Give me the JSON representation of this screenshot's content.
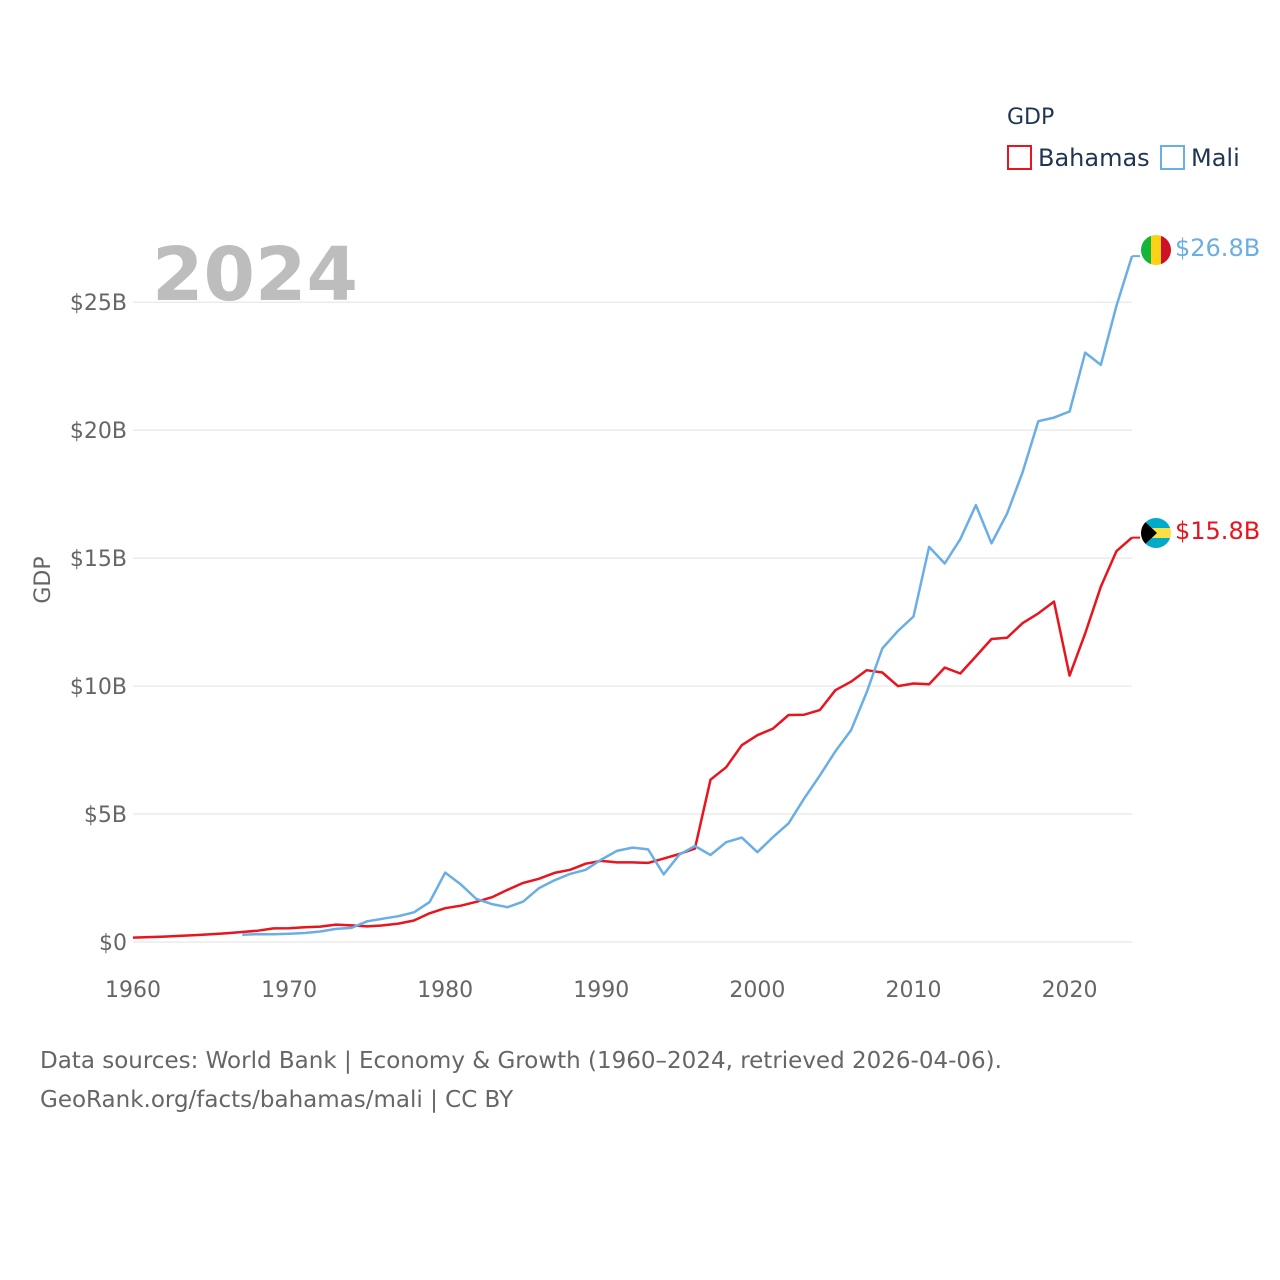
{
  "chart_data": {
    "type": "line",
    "title": "GDP",
    "xlabel": "",
    "ylabel": "GDP",
    "year_label": "2024",
    "xlim": [
      1960,
      2024
    ],
    "ylim": [
      0,
      27000000000
    ],
    "x_ticks": [
      1960,
      1970,
      1980,
      1990,
      2000,
      2010,
      2020
    ],
    "x_tick_labels": [
      "1960",
      "1970",
      "1980",
      "1990",
      "2000",
      "2010",
      "2020"
    ],
    "y_ticks": [
      0,
      5000000000,
      10000000000,
      15000000000,
      20000000000,
      25000000000
    ],
    "y_tick_labels": [
      "$0",
      "$5B",
      "$10B",
      "$15B",
      "$20B",
      "$25B"
    ],
    "grid": true,
    "legend": {
      "title": "GDP",
      "placement": "top-right",
      "entries": [
        "Bahamas",
        "Mali"
      ]
    },
    "series": [
      {
        "name": "Bahamas",
        "color": "#e8141e",
        "end_label": "$15.8B",
        "flag": "bahamas",
        "x": [
          1960,
          1961,
          1962,
          1963,
          1964,
          1965,
          1966,
          1967,
          1968,
          1969,
          1970,
          1971,
          1972,
          1973,
          1974,
          1975,
          1976,
          1977,
          1978,
          1979,
          1980,
          1981,
          1982,
          1983,
          1984,
          1985,
          1986,
          1987,
          1988,
          1989,
          1990,
          1991,
          1992,
          1993,
          1994,
          1995,
          1996,
          1997,
          1998,
          1999,
          2000,
          2001,
          2002,
          2003,
          2004,
          2005,
          2006,
          2007,
          2008,
          2009,
          2010,
          2011,
          2012,
          2013,
          2014,
          2015,
          2016,
          2017,
          2018,
          2019,
          2020,
          2021,
          2022,
          2023,
          2024
        ],
        "values": [
          170000000,
          190000000,
          210000000,
          240000000,
          270000000,
          300000000,
          340000000,
          390000000,
          440000000,
          530000000,
          540000000,
          580000000,
          600000000,
          680000000,
          650000000,
          610000000,
          650000000,
          720000000,
          840000000,
          1120000000,
          1320000000,
          1420000000,
          1570000000,
          1750000000,
          2040000000,
          2310000000,
          2470000000,
          2700000000,
          2820000000,
          3060000000,
          3170000000,
          3110000000,
          3110000000,
          3090000000,
          3260000000,
          3440000000,
          3650000000,
          6340000000,
          6830000000,
          7690000000,
          8080000000,
          8340000000,
          8870000000,
          8880000000,
          9060000000,
          9840000000,
          10170000000,
          10620000000,
          10530000000,
          10000000000,
          10100000000,
          10070000000,
          10720000000,
          10490000000,
          11160000000,
          11840000000,
          11890000000,
          12460000000,
          12840000000,
          13300000000,
          10410000000,
          12060000000,
          13880000000,
          15270000000,
          15800000000
        ]
      },
      {
        "name": "Mali",
        "color": "#6aaee6",
        "end_label": "$26.8B",
        "flag": "mali",
        "x": [
          1967,
          1968,
          1969,
          1970,
          1971,
          1972,
          1973,
          1974,
          1975,
          1976,
          1977,
          1978,
          1979,
          1980,
          1981,
          1982,
          1983,
          1984,
          1985,
          1986,
          1987,
          1988,
          1989,
          1990,
          1991,
          1992,
          1993,
          1994,
          1995,
          1996,
          1997,
          1998,
          1999,
          2000,
          2001,
          2002,
          2003,
          2004,
          2005,
          2006,
          2007,
          2008,
          2009,
          2010,
          2011,
          2012,
          2013,
          2014,
          2015,
          2016,
          2017,
          2018,
          2019,
          2020,
          2021,
          2022,
          2023,
          2024
        ],
        "values": [
          280000000,
          310000000,
          300000000,
          320000000,
          350000000,
          410000000,
          510000000,
          550000000,
          810000000,
          910000000,
          1010000000,
          1160000000,
          1560000000,
          2710000000,
          2250000000,
          1680000000,
          1480000000,
          1360000000,
          1580000000,
          2100000000,
          2410000000,
          2660000000,
          2820000000,
          3220000000,
          3560000000,
          3690000000,
          3620000000,
          2640000000,
          3410000000,
          3750000000,
          3400000000,
          3900000000,
          4080000000,
          3510000000,
          4100000000,
          4640000000,
          5610000000,
          6500000000,
          7450000000,
          8270000000,
          9750000000,
          11470000000,
          12150000000,
          12720000000,
          15440000000,
          14790000000,
          15740000000,
          17070000000,
          15580000000,
          16740000000,
          18370000000,
          20350000000,
          20490000000,
          20730000000,
          23030000000,
          22550000000,
          24850000000,
          26800000000
        ]
      }
    ]
  },
  "footer": {
    "line1": "Data sources: World Bank | Economy & Growth (1960–2024, retrieved 2026-04-06).",
    "line2": "GeoRank.org/facts/bahamas/mali | CC BY"
  }
}
